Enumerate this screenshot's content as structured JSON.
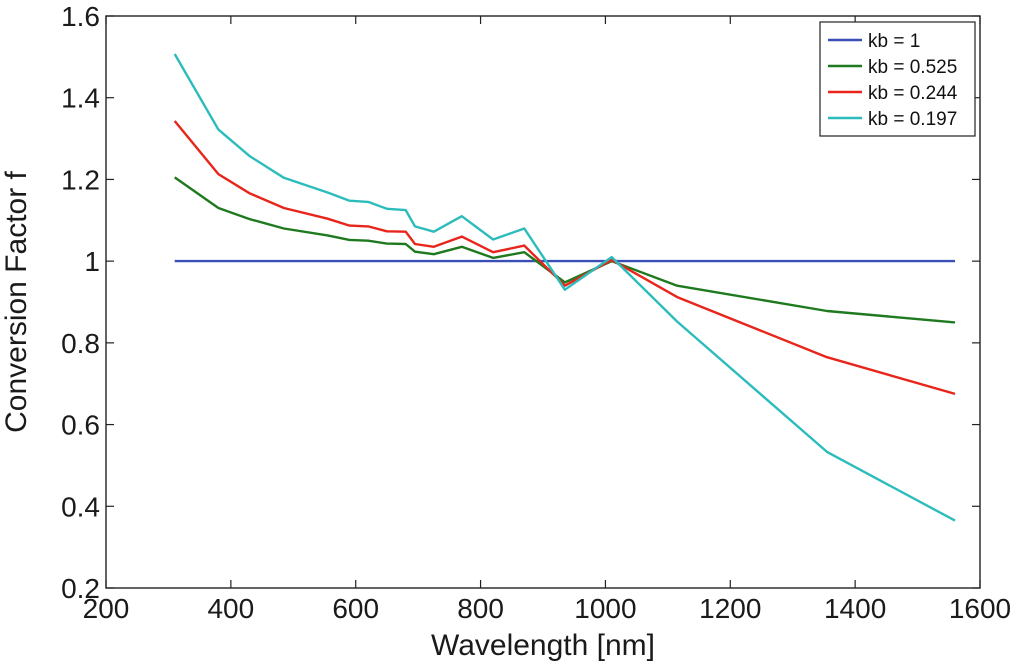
{
  "chart_data": {
    "type": "line",
    "xlabel": "Wavelength [nm]",
    "ylabel": "Conversion Factor f",
    "xlim": [
      200,
      1600
    ],
    "ylim": [
      0.2,
      1.6
    ],
    "xticks": [
      200,
      400,
      600,
      800,
      1000,
      1200,
      1400,
      1600
    ],
    "yticks": [
      0.2,
      0.4,
      0.6,
      0.8,
      1,
      1.2,
      1.4,
      1.6
    ],
    "xtick_labels": [
      "200",
      "400",
      "600",
      "800",
      "1000",
      "1200",
      "1400",
      "1600"
    ],
    "ytick_labels": [
      "0.2",
      "0.4",
      "0.6",
      "0.8",
      "1",
      "1.2",
      "1.4",
      "1.6"
    ],
    "grid": false,
    "legend_position": "top-right",
    "series": [
      {
        "name": "kb = 1",
        "color": "#3b4fb8",
        "x": [
          310,
          1560
        ],
        "y": [
          1.0,
          1.0
        ]
      },
      {
        "name": "kb = 0.525",
        "color": "#1f7a1f",
        "x": [
          310,
          380,
          430,
          485,
          555,
          590,
          620,
          650,
          680,
          695,
          725,
          770,
          820,
          870,
          935,
          1010,
          1115,
          1355,
          1560
        ],
        "y": [
          1.205,
          1.13,
          1.103,
          1.08,
          1.063,
          1.052,
          1.05,
          1.043,
          1.042,
          1.023,
          1.017,
          1.035,
          1.008,
          1.022,
          0.948,
          1.0,
          0.94,
          0.878,
          0.85
        ]
      },
      {
        "name": "kb = 0.244",
        "color": "#e8251b",
        "x": [
          310,
          380,
          430,
          485,
          555,
          590,
          620,
          650,
          680,
          695,
          725,
          770,
          820,
          870,
          935,
          1010,
          1115,
          1355,
          1560
        ],
        "y": [
          1.343,
          1.213,
          1.166,
          1.13,
          1.104,
          1.087,
          1.085,
          1.073,
          1.072,
          1.042,
          1.035,
          1.06,
          1.022,
          1.038,
          0.94,
          1.003,
          0.912,
          0.765,
          0.675
        ]
      },
      {
        "name": "kb = 0.197",
        "color": "#2cbcbc",
        "x": [
          310,
          380,
          430,
          485,
          555,
          590,
          620,
          650,
          680,
          695,
          725,
          770,
          820,
          870,
          935,
          1010,
          1115,
          1355,
          1560
        ],
        "y": [
          1.507,
          1.322,
          1.257,
          1.204,
          1.168,
          1.148,
          1.145,
          1.128,
          1.125,
          1.085,
          1.072,
          1.11,
          1.053,
          1.08,
          0.93,
          1.01,
          0.852,
          0.533,
          0.365
        ]
      }
    ]
  }
}
